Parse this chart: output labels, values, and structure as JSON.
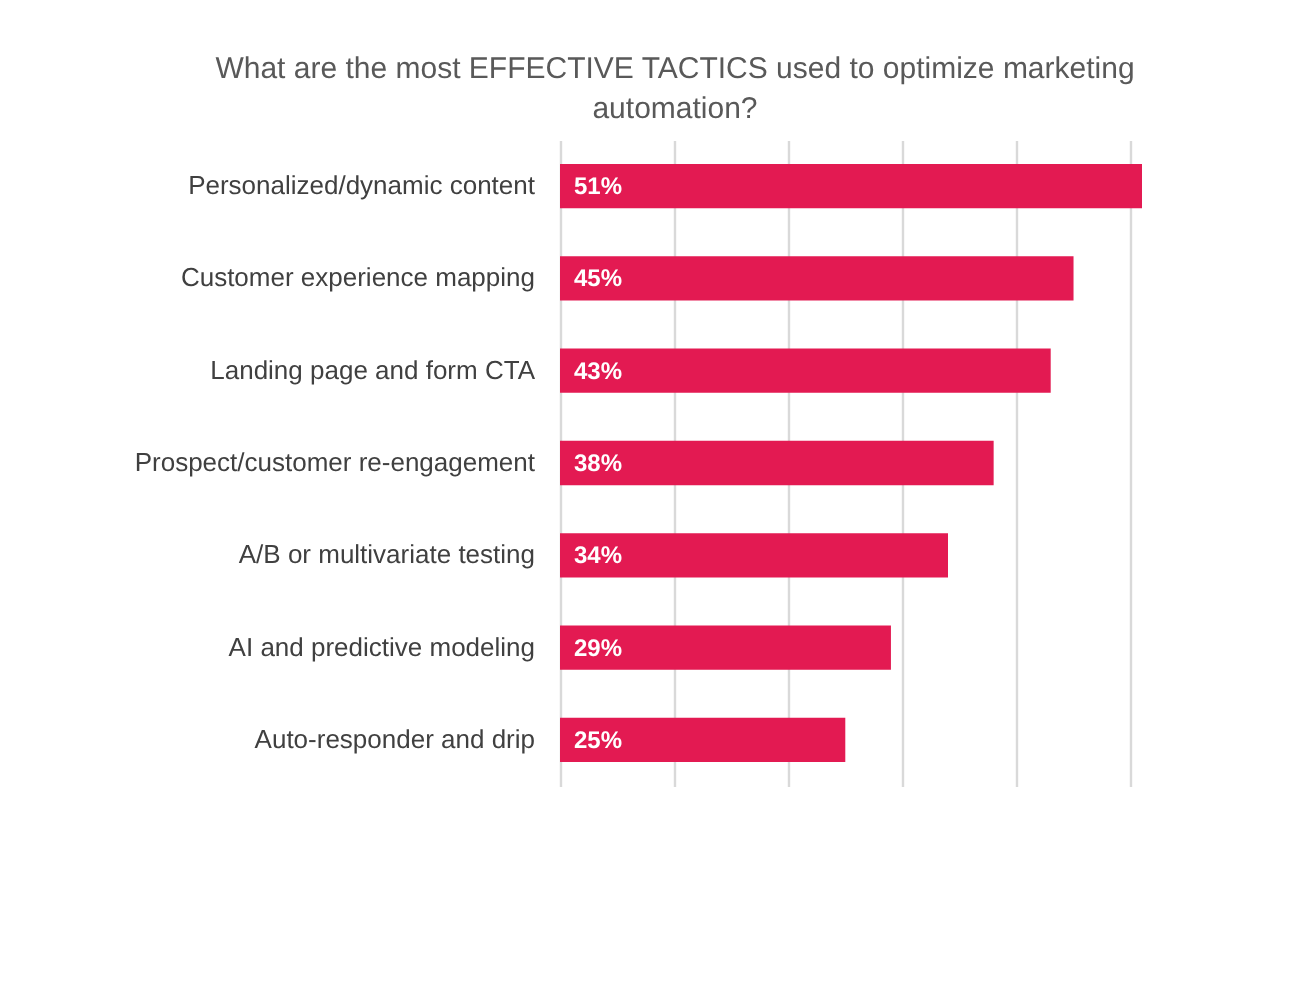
{
  "chart_data": {
    "type": "bar",
    "orientation": "horizontal",
    "title": "What are the most EFFECTIVE TACTICS used to optimize marketing automation?",
    "categories": [
      "Personalized/dynamic content",
      "Customer experience mapping",
      "Landing page and form CTA",
      "Prospect/customer re-engagement",
      "A/B or multivariate testing",
      "AI and predictive modeling",
      "Auto-responder and drip"
    ],
    "values": [
      51,
      45,
      43,
      38,
      34,
      29,
      25
    ],
    "value_labels": [
      "51%",
      "45%",
      "43%",
      "38%",
      "34%",
      "29%",
      "25%"
    ],
    "color": "#e31a52",
    "xticks": [
      {
        "value": 0,
        "label": null
      },
      {
        "value": 10,
        "label": null
      },
      {
        "value": 20,
        "label": null
      },
      {
        "value": 30,
        "label": null
      },
      {
        "value": 40,
        "label": null
      },
      {
        "value": 50,
        "label": null
      }
    ],
    "grid": "x",
    "tick_labels": "y"
  }
}
